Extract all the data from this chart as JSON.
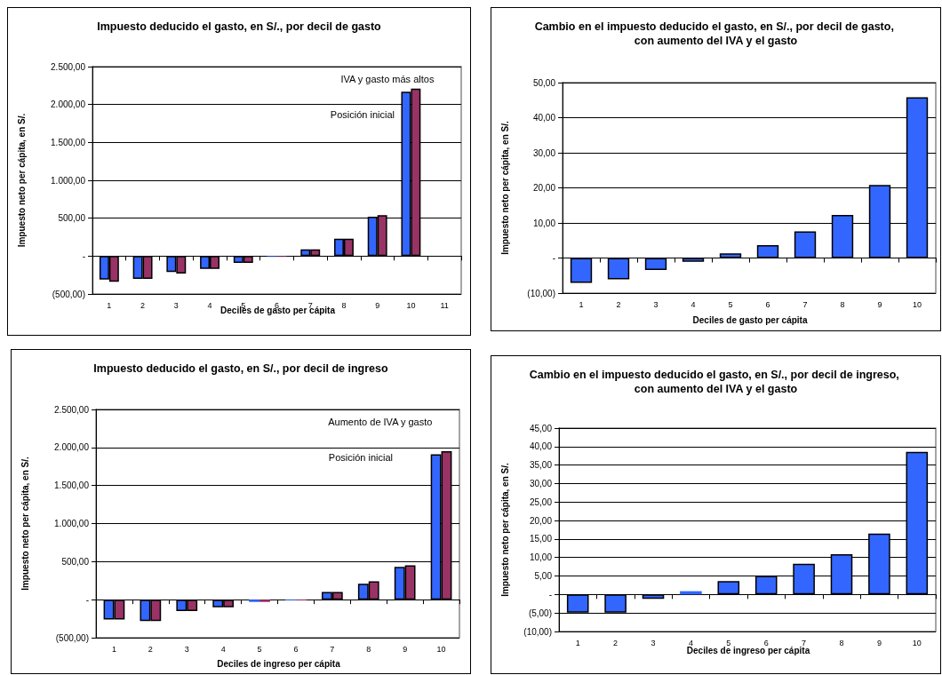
{
  "chart_data": [
    {
      "type": "bar",
      "title": "Impuesto deducido el gasto, en S/., por decil de gasto",
      "xlabel": "Deciles de gasto per cápita",
      "ylabel": "Impuesto neto per cápita, en S/.",
      "categories": [
        "1",
        "2",
        "3",
        "4",
        "5",
        "6",
        "7",
        "8",
        "9",
        "10",
        "11"
      ],
      "series": [
        {
          "color": "#3366ff",
          "values": [
            -310,
            -300,
            -210,
            -170,
            -90,
            -10,
            90,
            230,
            520,
            2170,
            null
          ]
        },
        {
          "color": "#993366",
          "values": [
            -340,
            -300,
            -230,
            -170,
            -90,
            -10,
            90,
            230,
            540,
            2210,
            null
          ]
        }
      ],
      "ylim": [
        -500,
        2500
      ],
      "yticks": [
        {
          "value": -500,
          "label": "(500,00)"
        },
        {
          "value": 0,
          "label": "-"
        },
        {
          "value": 500,
          "label": "500,00"
        },
        {
          "value": 1000,
          "label": "1.000,00"
        },
        {
          "value": 1500,
          "label": "1.500,00"
        },
        {
          "value": 2000,
          "label": "2.000,00"
        },
        {
          "value": 2500,
          "label": "2.500,00"
        }
      ],
      "grid": "y",
      "annotations": [
        "IVA y gasto más altos",
        "Posición inicial"
      ]
    },
    {
      "type": "bar",
      "title": "Cambio en el impuesto deducido el gasto, en S/., por decil de gasto, con aumento del IVA y el gasto",
      "xlabel": "Deciles de gasto per cápita",
      "ylabel": "Impuesto neto per cápita, en S/.",
      "categories": [
        "1",
        "2",
        "3",
        "4",
        "5",
        "6",
        "7",
        "8",
        "9",
        "10"
      ],
      "series": [
        {
          "color": "#3366ff",
          "values": [
            -7.1,
            -6.1,
            -3.4,
            -1.1,
            1.3,
            3.7,
            7.6,
            12.3,
            20.8,
            45.8
          ]
        }
      ],
      "ylim": [
        -10,
        50
      ],
      "yticks": [
        {
          "value": -10,
          "label": "(10,00)"
        },
        {
          "value": 0,
          "label": "-"
        },
        {
          "value": 10,
          "label": "10,00"
        },
        {
          "value": 20,
          "label": "20,00"
        },
        {
          "value": 30,
          "label": "30,00"
        },
        {
          "value": 40,
          "label": "40,00"
        },
        {
          "value": 50,
          "label": "50,00"
        }
      ],
      "grid": "y"
    },
    {
      "type": "bar",
      "title": "Impuesto deducido el gasto, en S/., por decil de ingreso",
      "xlabel": "Deciles de ingreso per cápita",
      "ylabel": "Impuesto neto per cápita, en S/.",
      "categories": [
        "1",
        "2",
        "3",
        "4",
        "5",
        "6",
        "7",
        "8",
        "9",
        "10"
      ],
      "series": [
        {
          "color": "#3366ff",
          "values": [
            -260,
            -280,
            -150,
            -100,
            -30,
            -10,
            100,
            210,
            430,
            1910
          ]
        },
        {
          "color": "#993366",
          "values": [
            -260,
            -280,
            -150,
            -100,
            -30,
            -10,
            100,
            240,
            450,
            1950
          ]
        }
      ],
      "ylim": [
        -500,
        2500
      ],
      "yticks": [
        {
          "value": -500,
          "label": "(500,00)"
        },
        {
          "value": 0,
          "label": "-"
        },
        {
          "value": 500,
          "label": "500,00"
        },
        {
          "value": 1000,
          "label": "1.000,00"
        },
        {
          "value": 1500,
          "label": "1.500,00"
        },
        {
          "value": 2000,
          "label": "2.000,00"
        },
        {
          "value": 2500,
          "label": "2.500,00"
        }
      ],
      "grid": "y",
      "annotations": [
        "Aumento de IVA y gasto",
        "Posición inicial"
      ]
    },
    {
      "type": "bar",
      "title": "Cambio en el impuesto deducido el gasto, en S/., por decil de ingreso, con aumento del IVA y el gasto",
      "xlabel": "Deciles de ingreso per cápita",
      "ylabel": "Impuesto neto per cápita, en S/.",
      "categories": [
        "1",
        "2",
        "3",
        "4",
        "5",
        "6",
        "7",
        "8",
        "9",
        "10"
      ],
      "series": [
        {
          "color": "#3366ff",
          "values": [
            -4.9,
            -4.9,
            -1.2,
            0.9,
            3.6,
            5.0,
            8.3,
            10.9,
            16.5,
            38.6
          ]
        }
      ],
      "ylim": [
        -10,
        45
      ],
      "yticks": [
        {
          "value": -10,
          "label": "(10,00)"
        },
        {
          "value": -5,
          "label": "(5,00)"
        },
        {
          "value": 0,
          "label": "-"
        },
        {
          "value": 5,
          "label": "5,00"
        },
        {
          "value": 10,
          "label": "10,00"
        },
        {
          "value": 15,
          "label": "15,00"
        },
        {
          "value": 20,
          "label": "20,00"
        },
        {
          "value": 25,
          "label": "25,00"
        },
        {
          "value": 30,
          "label": "30,00"
        },
        {
          "value": 35,
          "label": "35,00"
        },
        {
          "value": 40,
          "label": "40,00"
        },
        {
          "value": 45,
          "label": "45,00"
        }
      ],
      "grid": "y"
    }
  ]
}
